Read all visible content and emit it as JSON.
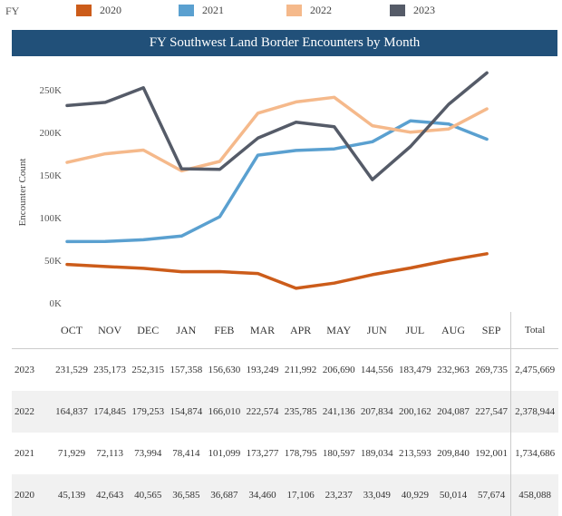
{
  "legend": {
    "label": "FY",
    "items": [
      {
        "name": "2020",
        "color": "#cc5c1a"
      },
      {
        "name": "2021",
        "color": "#5aa0d0"
      },
      {
        "name": "2022",
        "color": "#f5b98b"
      },
      {
        "name": "2023",
        "color": "#555b68"
      }
    ]
  },
  "chart_data": {
    "type": "line",
    "title": "FY Southwest Land Border Encounters by Month",
    "ylabel": "Encounter Count",
    "categories": [
      "OCT",
      "NOV",
      "DEC",
      "JAN",
      "FEB",
      "MAR",
      "APR",
      "MAY",
      "JUN",
      "JUL",
      "AUG",
      "SEP"
    ],
    "yticks": [
      "0K",
      "50K",
      "100K",
      "150K",
      "200K",
      "250K"
    ],
    "ylim": [
      0,
      280000
    ],
    "grid": false,
    "legend_position": "top",
    "series": [
      {
        "name": "2023",
        "color": "#555b68",
        "values": [
          231529,
          235173,
          252315,
          157358,
          156630,
          193249,
          211992,
          206690,
          144556,
          183479,
          232963,
          269735
        ],
        "total": "2,475,669",
        "labels": [
          "231,529",
          "235,173",
          "252,315",
          "157,358",
          "156,630",
          "193,249",
          "211,992",
          "206,690",
          "144,556",
          "183,479",
          "232,963",
          "269,735"
        ]
      },
      {
        "name": "2022",
        "color": "#f5b98b",
        "values": [
          164837,
          174845,
          179253,
          154874,
          166010,
          222574,
          235785,
          241136,
          207834,
          200162,
          204087,
          227547
        ],
        "total": "2,378,944",
        "labels": [
          "164,837",
          "174,845",
          "179,253",
          "154,874",
          "166,010",
          "222,574",
          "235,785",
          "241,136",
          "207,834",
          "200,162",
          "204,087",
          "227,547"
        ]
      },
      {
        "name": "2021",
        "color": "#5aa0d0",
        "values": [
          71929,
          72113,
          73994,
          78414,
          101099,
          173277,
          178795,
          180597,
          189034,
          213593,
          209840,
          192001
        ],
        "total": "1,734,686",
        "labels": [
          "71,929",
          "72,113",
          "73,994",
          "78,414",
          "101,099",
          "173,277",
          "178,795",
          "180,597",
          "189,034",
          "213,593",
          "209,840",
          "192,001"
        ]
      },
      {
        "name": "2020",
        "color": "#cc5c1a",
        "values": [
          45139,
          42643,
          40565,
          36585,
          36687,
          34460,
          17106,
          23237,
          33049,
          40929,
          50014,
          57674
        ],
        "total": "458,088",
        "labels": [
          "45,139",
          "42,643",
          "40,565",
          "36,585",
          "36,687",
          "34,460",
          "17,106",
          "23,237",
          "33,049",
          "40,929",
          "50,014",
          "57,674"
        ]
      }
    ]
  },
  "table": {
    "total_header": "Total"
  }
}
